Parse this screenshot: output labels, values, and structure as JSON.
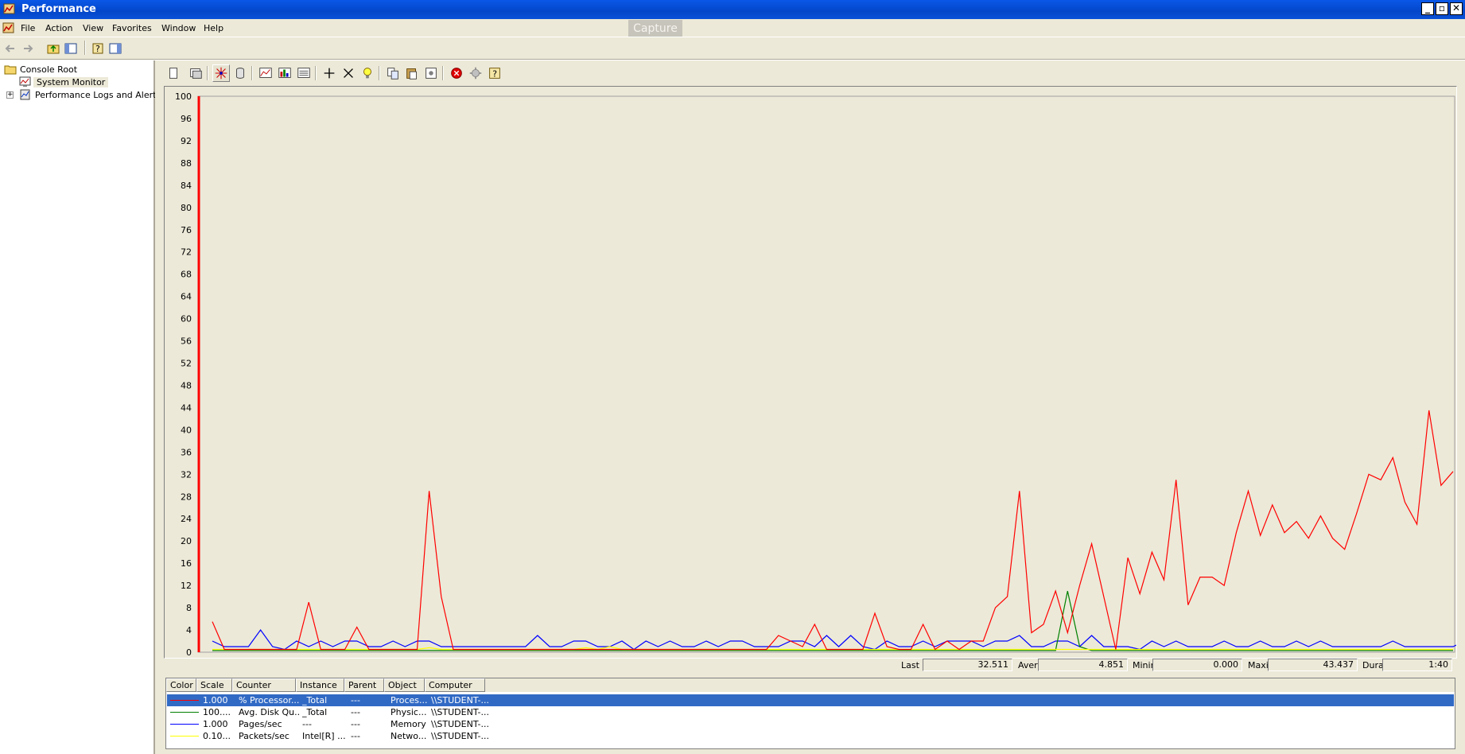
{
  "window": {
    "title": "Performance"
  },
  "menu": [
    "File",
    "Action",
    "View",
    "Favorites",
    "Window",
    "Help"
  ],
  "overlay": {
    "capture_label": "Capture"
  },
  "tree": {
    "items": [
      {
        "label": "Console Root",
        "icon": "folder-icon"
      },
      {
        "label": "System Monitor",
        "icon": "system-monitor-icon"
      },
      {
        "label": "Performance Logs and Alerts",
        "icon": "logs-alerts-icon"
      }
    ]
  },
  "stats": {
    "last_label": "Last",
    "last_value": "32.511",
    "average_label": "Average",
    "average_value": "4.851",
    "minimum_label": "Minimum",
    "minimum_value": "0.000",
    "maximum_label": "Maximum",
    "maximum_value": "43.437",
    "duration_label": "Duration",
    "duration_value": "1:40"
  },
  "legend": {
    "columns": [
      "Color",
      "Scale",
      "Counter",
      "Instance",
      "Parent",
      "Object",
      "Computer"
    ],
    "rows": [
      {
        "color": "#ff0000",
        "scale": "1.000",
        "counter": "% Processor...",
        "instance": "_Total",
        "parent": "---",
        "object": "Proces...",
        "computer": "\\\\STUDENT-..."
      },
      {
        "color": "#008000",
        "scale": "100....",
        "counter": "Avg. Disk Qu...",
        "instance": "_Total",
        "parent": "---",
        "object": "Physic...",
        "computer": "\\\\STUDENT-..."
      },
      {
        "color": "#0000ff",
        "scale": "1.000",
        "counter": "Pages/sec",
        "instance": "---",
        "parent": "---",
        "object": "Memory",
        "computer": "\\\\STUDENT-..."
      },
      {
        "color": "#ffff00",
        "scale": "0.10...",
        "counter": "Packets/sec",
        "instance": "Intel[R] ...",
        "parent": "---",
        "object": "Netwo...",
        "computer": "\\\\STUDENT-..."
      }
    ]
  },
  "chart_data": {
    "type": "line",
    "ylim": [
      0,
      100
    ],
    "yticks": [
      0,
      4,
      8,
      12,
      16,
      20,
      24,
      28,
      32,
      36,
      40,
      44,
      48,
      52,
      56,
      60,
      64,
      68,
      72,
      76,
      80,
      84,
      88,
      92,
      96,
      100
    ],
    "grid": false,
    "background": "#ece9d8",
    "series": [
      {
        "color": "#ff0000",
        "values": [
          5.5,
          0.5,
          0.5,
          0.5,
          0.5,
          0.5,
          0.5,
          0.5,
          9,
          0.5,
          0.5,
          0.5,
          4.5,
          0.5,
          0.5,
          0.5,
          0.5,
          0.5,
          29,
          10,
          0.5,
          0.5,
          0.5,
          0.5,
          0.5,
          0.5,
          0.5,
          0.5,
          0.5,
          0.5,
          0.5,
          0.5,
          0.5,
          0.5,
          0.5,
          0.5,
          0.5,
          0.5,
          0.5,
          0.5,
          0.5,
          0.5,
          0.5,
          0.5,
          0.5,
          0.5,
          0.5,
          3,
          2,
          1,
          5,
          0.5,
          0.5,
          0.5,
          0.5,
          7,
          1,
          0.5,
          0.5,
          5,
          0.5,
          2,
          0.5,
          2,
          2,
          8,
          10,
          29,
          3.5,
          5,
          11,
          3.5,
          12,
          19.5,
          10,
          0.5,
          17,
          10.5,
          18,
          13,
          31,
          8.5,
          13.5,
          13.5,
          12,
          21.5,
          29,
          21,
          26.5,
          21.5,
          23.5,
          20.5,
          24.5,
          20.5,
          18.5,
          25,
          32,
          31,
          35,
          27,
          23,
          43.5,
          30,
          32.5
        ]
      },
      {
        "color": "#0000ff",
        "values": [
          2,
          1,
          1,
          1,
          4,
          1,
          0.5,
          2,
          1,
          2,
          1,
          2,
          2,
          1,
          1,
          2,
          1,
          2,
          2,
          1,
          1,
          1,
          1,
          1,
          1,
          1,
          1,
          3,
          1,
          1,
          2,
          2,
          1,
          1,
          2,
          0.5,
          2,
          1,
          2,
          1,
          1,
          2,
          1,
          2,
          2,
          1,
          1,
          1,
          2,
          2,
          1,
          3,
          1,
          3,
          1,
          0.5,
          2,
          1,
          1,
          2,
          1,
          2,
          2,
          2,
          1,
          2,
          2,
          3,
          1,
          1,
          2,
          2,
          1,
          3,
          1,
          1,
          1,
          0.5,
          2,
          1,
          2,
          1,
          1,
          1,
          2,
          1,
          1,
          2,
          1,
          1,
          2,
          1,
          2,
          1,
          1,
          1,
          1,
          1,
          2,
          1,
          1,
          1,
          1,
          1,
          2
        ]
      },
      {
        "color": "#008000",
        "values": [
          0.3,
          0.3,
          0.3,
          0.3,
          0.3,
          0.3,
          0.3,
          0.3,
          0.3,
          0.3,
          0.3,
          0.3,
          0.3,
          0.3,
          0.3,
          0.3,
          0.3,
          0.3,
          0.3,
          0.3,
          0.3,
          0.3,
          0.3,
          0.3,
          0.3,
          0.3,
          0.3,
          0.3,
          0.3,
          0.3,
          0.3,
          0.3,
          0.3,
          0.3,
          0.3,
          0.3,
          0.3,
          0.3,
          0.3,
          0.3,
          0.3,
          0.3,
          0.3,
          0.3,
          0.3,
          0.3,
          0.3,
          0.3,
          0.3,
          0.3,
          0.3,
          0.3,
          0.3,
          0.3,
          0.3,
          0.3,
          0.3,
          0.3,
          0.3,
          0.3,
          0.3,
          0.3,
          0.3,
          0.3,
          0.3,
          0.3,
          0.3,
          0.3,
          0.3,
          0.3,
          0.3,
          11,
          1,
          0.3,
          0.3,
          0.3,
          0.3,
          0.3,
          0.3,
          0.3,
          0.3,
          0.3,
          0.3,
          0.3,
          0.3,
          0.3,
          0.3,
          0.3,
          0.3,
          0.3,
          0.3,
          0.3,
          0.3,
          0.3,
          0.3,
          0.3,
          0.3,
          0.3,
          0.3,
          0.3,
          0.3,
          0.3,
          0.3,
          0.3
        ]
      },
      {
        "color": "#ffff00",
        "values": [
          0.5,
          0.5,
          0.5,
          0.5,
          0.5,
          0.5,
          0.5,
          0.5,
          0.5,
          0.5,
          0.5,
          0.5,
          0.5,
          0.5,
          0.5,
          0.5,
          0.5,
          0.5,
          0.8,
          0.5,
          0.5,
          0.5,
          0.5,
          0.5,
          0.5,
          0.5,
          0.5,
          0.5,
          0.5,
          0.5,
          0.5,
          0.8,
          0.5,
          1,
          0.5,
          0.5,
          0.5,
          0.5,
          0.5,
          0.5,
          0.5,
          0.5,
          0.5,
          0.5,
          0.5,
          0.5,
          0.5,
          0.5,
          0.5,
          0.5,
          0.5,
          0.5,
          0.5,
          0.5,
          0.5,
          0.5,
          0.5,
          0.5,
          0.5,
          0.5,
          0.5,
          0.5,
          0.5,
          0.5,
          0.5,
          0.5,
          0.5,
          0.5,
          0.5,
          0.5,
          0.5,
          0.5,
          0.5,
          0.5,
          0.5,
          0.5,
          0.5,
          0.5,
          0.5,
          0.5,
          0.5,
          0.5,
          0.5,
          0.5,
          0.5,
          0.5,
          0.5,
          0.5,
          0.5,
          0.5,
          0.5,
          0.5,
          0.5,
          0.5,
          0.5,
          0.5,
          0.5,
          0.5,
          0.5,
          0.5,
          0.5,
          0.5,
          0.5,
          0.5
        ]
      }
    ]
  }
}
